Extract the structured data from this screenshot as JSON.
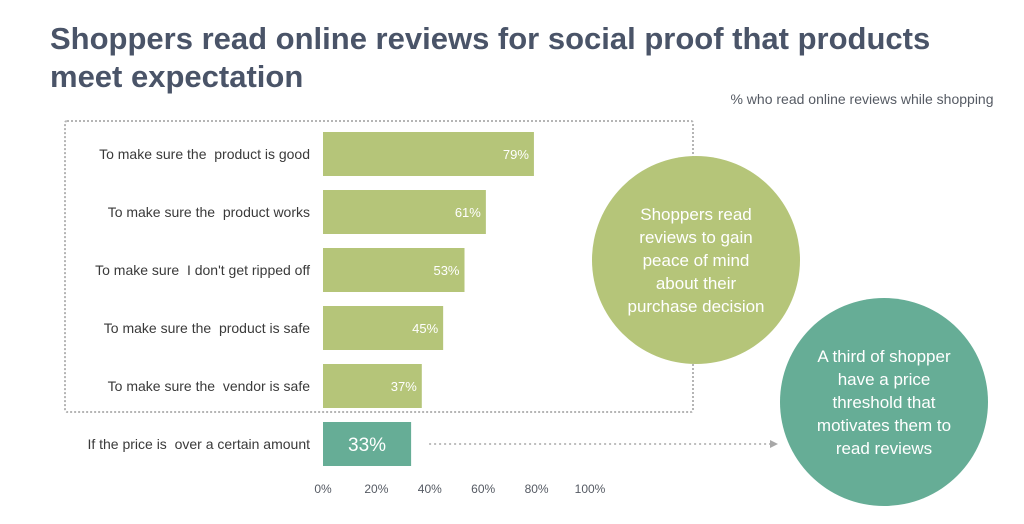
{
  "title": "Shoppers read online reviews for social proof that products meet expectation",
  "subtitle": "% who read online reviews while shopping",
  "callout_green": "Shoppers read reviews to gain peace of mind about their purchase decision",
  "callout_teal": "A third of shopper have a price threshold that motivates them to read reviews",
  "colors": {
    "bar_green": "#b5c579",
    "bar_teal": "#66ad96",
    "title": "#4a5468",
    "text": "#3a3a3a"
  },
  "chart_data": {
    "type": "bar",
    "orientation": "horizontal",
    "categories": [
      "To make sure the  product is good",
      "To make sure the  product works",
      "To make sure  I don't get ripped off",
      "To make sure the  product is safe",
      "To make sure the  vendor is safe",
      "If the price is  over a certain amount"
    ],
    "values": [
      79,
      61,
      53,
      45,
      37,
      33
    ],
    "value_labels": [
      "79%",
      "61%",
      "53%",
      "45%",
      "37%",
      "33%"
    ],
    "xlim": [
      0,
      100
    ],
    "x_ticks": [
      0,
      20,
      40,
      60,
      80,
      100
    ],
    "x_tick_labels": [
      "0%",
      "20%",
      "40%",
      "60%",
      "80%",
      "100%"
    ],
    "highlight_index": 5,
    "grid": false
  }
}
